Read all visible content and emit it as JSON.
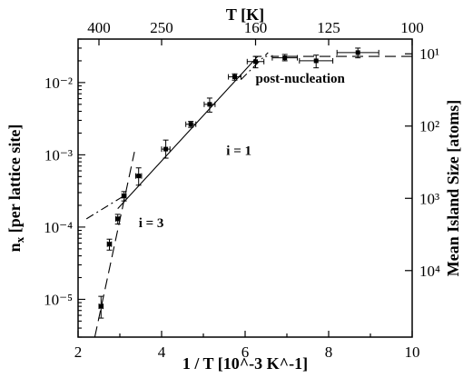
{
  "chart_data": {
    "type": "scatter",
    "title": "",
    "xlabel": "1 / T [10^-3 K^-1]",
    "ylabel_left": "n_x [per lattice site]",
    "xlabel_top": "T [K]",
    "ylabel_right": "Mean Island Size [atoms]",
    "xlim": [
      2,
      10
    ],
    "ylim": [
      3e-06,
      0.04
    ],
    "y_scale": "log",
    "grid": false,
    "x_ticks": [
      2,
      4,
      6,
      8,
      10
    ],
    "y_ticks": [
      1e-05,
      0.0001,
      0.001,
      0.01
    ],
    "y_tick_labels": [
      "10⁻⁵",
      "10⁻⁴",
      "10⁻³",
      "10⁻²"
    ],
    "top_ticks": [
      400,
      250,
      160,
      125,
      100
    ],
    "top_tick_labels": [
      "400",
      "250",
      "160",
      "125",
      "100"
    ],
    "right_ticks": [
      10,
      100,
      1000,
      10000
    ],
    "right_tick_labels": [
      "10¹",
      "10²",
      "10³",
      "10⁴"
    ],
    "series": [
      {
        "points": [
          {
            "x": 2.55,
            "y": 8e-06,
            "yerr_lo": 5.5e-06,
            "yerr_hi": 1.1e-05,
            "xerr": 0.05
          },
          {
            "x": 2.75,
            "y": 5.8e-05,
            "yerr_lo": 4.8e-05,
            "yerr_hi": 6.8e-05,
            "xerr": 0.05
          },
          {
            "x": 2.95,
            "y": 0.00013,
            "yerr_lo": 0.00011,
            "yerr_hi": 0.00015,
            "xerr": 0.05
          },
          {
            "x": 3.1,
            "y": 0.00027,
            "yerr_lo": 0.00023,
            "yerr_hi": 0.00031,
            "xerr": 0.05
          },
          {
            "x": 3.45,
            "y": 0.00051,
            "yerr_lo": 0.00038,
            "yerr_hi": 0.00066,
            "xerr": 0.07
          },
          {
            "x": 4.1,
            "y": 0.0012,
            "yerr_lo": 0.0009,
            "yerr_hi": 0.0016,
            "xerr": 0.1
          },
          {
            "x": 4.7,
            "y": 0.00265,
            "yerr_lo": 0.0024,
            "yerr_hi": 0.0029,
            "xerr": 0.12
          },
          {
            "x": 5.15,
            "y": 0.005,
            "yerr_lo": 0.0039,
            "yerr_hi": 0.0061,
            "xerr": 0.13
          },
          {
            "x": 5.75,
            "y": 0.012,
            "yerr_lo": 0.0108,
            "yerr_hi": 0.0132,
            "xerr": 0.15
          },
          {
            "x": 6.25,
            "y": 0.0195,
            "yerr_lo": 0.016,
            "yerr_hi": 0.023,
            "xerr": 0.2
          },
          {
            "x": 6.95,
            "y": 0.022,
            "yerr_lo": 0.02,
            "yerr_hi": 0.0245,
            "xerr": 0.3
          },
          {
            "x": 7.7,
            "y": 0.02,
            "yerr_lo": 0.016,
            "yerr_hi": 0.024,
            "xerr": 0.4
          },
          {
            "x": 8.7,
            "y": 0.026,
            "yerr_lo": 0.022,
            "yerr_hi": 0.03,
            "xerr": 0.5
          }
        ]
      }
    ],
    "fit_lines": [
      {
        "label": "i = 3",
        "style": "long-dash",
        "x": [
          2.4,
          3.35
        ],
        "y": [
          3e-06,
          0.0011
        ]
      },
      {
        "label": "",
        "style": "dash-dot",
        "x": [
          2.2,
          3.05
        ],
        "y": [
          0.00013,
          0.00026
        ]
      },
      {
        "label": "i = 1",
        "style": "solid",
        "x": [
          2.95,
          6.3
        ],
        "y": [
          0.00018,
          0.023
        ]
      },
      {
        "label": "",
        "style": "dash-dot",
        "x": [
          5.9,
          6.55
        ],
        "y": [
          0.011,
          0.026
        ]
      },
      {
        "label": "",
        "style": "dash-dot",
        "x": [
          6.2,
          7.0
        ],
        "y": [
          0.023,
          0.023
        ]
      },
      {
        "label": "",
        "style": "long-dash",
        "x": [
          7.0,
          10.0
        ],
        "y": [
          0.023,
          0.023
        ]
      }
    ],
    "annotations": [
      {
        "text": "post-nucleation",
        "x": 6.25,
        "y": 0.01
      },
      {
        "text": "i = 1",
        "x": 5.55,
        "y": 0.001
      },
      {
        "text": "i = 3",
        "x": 3.45,
        "y": 0.0001
      }
    ]
  }
}
